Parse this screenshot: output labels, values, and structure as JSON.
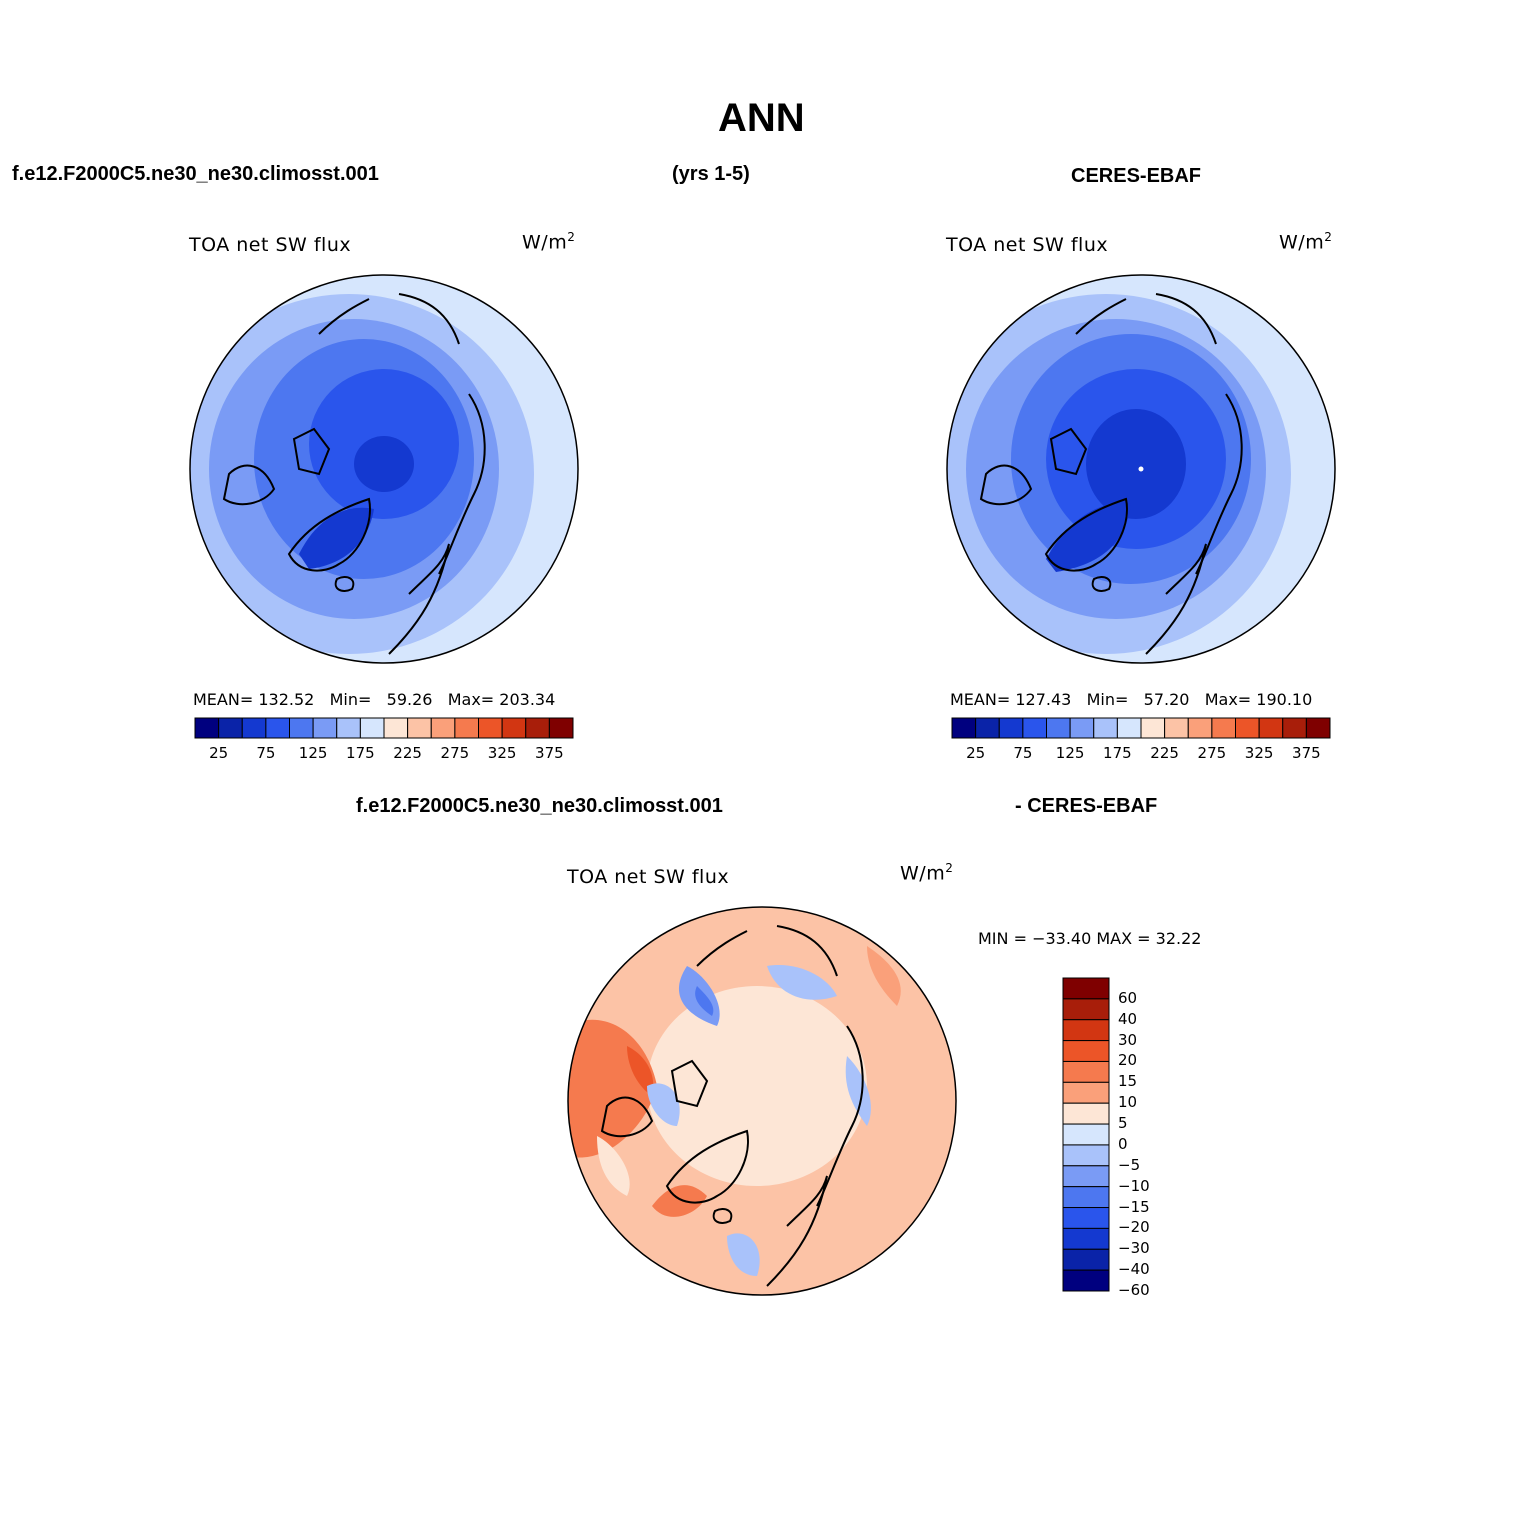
{
  "page": {
    "title": "ANN",
    "case_name": "f.e12.F2000C5.ne30_ne30.climosst.001",
    "years": "(yrs 1-5)",
    "obs_name": "CERES-EBAF"
  },
  "panels": [
    {
      "variable": "TOA net SW flux",
      "units": "W/m",
      "units_sup": "2",
      "stats": {
        "mean_label": "MEAN=",
        "mean": "132.52",
        "min_label": "Min=",
        "min": "59.26",
        "max_label": "Max=",
        "max": "203.34"
      },
      "palette": "blues"
    },
    {
      "variable": "TOA net SW flux",
      "units": "W/m",
      "units_sup": "2",
      "stats": {
        "mean_label": "MEAN=",
        "mean": "127.43",
        "min_label": "Min=",
        "min": "57.20",
        "max_label": "Max=",
        "max": "190.10"
      },
      "palette": "blues_darker"
    }
  ],
  "abs_colorbar": {
    "colors": [
      "#00007f",
      "#0a23a8",
      "#1439d0",
      "#2a55ec",
      "#4d77f0",
      "#7a9bf5",
      "#a9c2fa",
      "#d6e6fd",
      "#fde6d6",
      "#fcc3a6",
      "#faa07a",
      "#f57a4e",
      "#ec5528",
      "#d23612",
      "#a81e0a",
      "#7f0000"
    ],
    "ticks": [
      "25",
      "75",
      "125",
      "175",
      "225",
      "275",
      "325",
      "375"
    ]
  },
  "diff": {
    "title_left": "f.e12.F2000C5.ne30_ne30.climosst.001",
    "title_right": "- CERES-EBAF",
    "variable": "TOA net SW flux",
    "units": "W/m",
    "units_sup": "2",
    "minmax": "MIN = −33.40 MAX =   32.22",
    "colors": [
      "#7f0000",
      "#a81e0a",
      "#d23612",
      "#ec5528",
      "#f57a4e",
      "#faa07a",
      "#fde6d6",
      "#d6e6fd",
      "#a9c2fa",
      "#7a9bf5",
      "#4d77f0",
      "#2a55ec",
      "#1439d0",
      "#0a23a8",
      "#00007f"
    ],
    "ticks": [
      "60",
      "40",
      "30",
      "20",
      "15",
      "10",
      "5",
      "0",
      "−5",
      "−10",
      "−15",
      "−20",
      "−30",
      "−40",
      "−60"
    ]
  }
}
